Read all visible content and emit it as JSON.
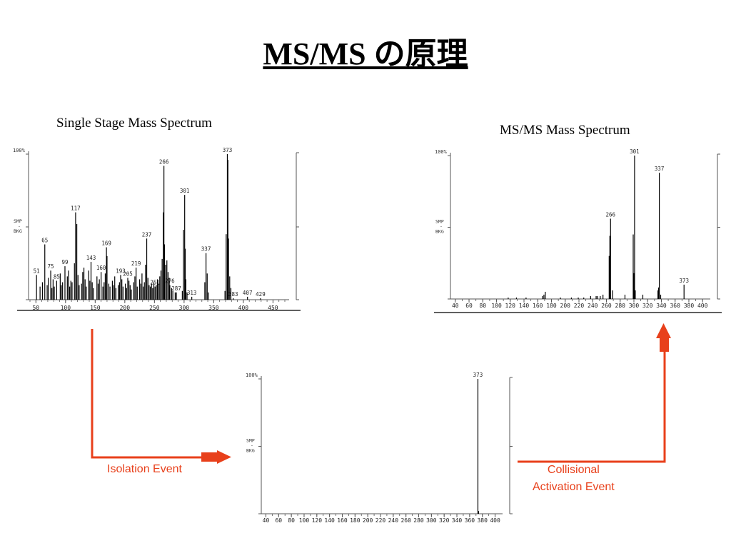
{
  "title": "MS/MS の原理",
  "captions": {
    "single": "Single Stage Mass Spectrum",
    "msms": "MS/MS Mass Spectrum"
  },
  "events": {
    "isolation": "Isolation Event",
    "collisional_line1": "Collisional",
    "collisional_line2": "Activation Event"
  },
  "colors": {
    "arrow": "#e8401b",
    "trace": "#000000",
    "axis": "#555555"
  },
  "chart_data": [
    {
      "id": "single",
      "type": "bar",
      "xlabel": "",
      "ylabel": "",
      "xlim": [
        40,
        470
      ],
      "ylim": [
        0,
        100
      ],
      "xticks": [
        50,
        100,
        150,
        200,
        250,
        300,
        350,
        400,
        450
      ],
      "minor_step": 10,
      "ytop_label": "100%",
      "side_label": [
        "SMP",
        "-",
        "BKG"
      ],
      "peaks": [
        {
          "x": 373,
          "y": 100,
          "label": "373"
        },
        {
          "x": 374,
          "y": 96
        },
        {
          "x": 375,
          "y": 42
        },
        {
          "x": 371,
          "y": 45
        },
        {
          "x": 266,
          "y": 92,
          "label": "266"
        },
        {
          "x": 265,
          "y": 60
        },
        {
          "x": 267,
          "y": 38
        },
        {
          "x": 301,
          "y": 72,
          "label": "301"
        },
        {
          "x": 299,
          "y": 48
        },
        {
          "x": 302,
          "y": 35
        },
        {
          "x": 117,
          "y": 60,
          "label": "117"
        },
        {
          "x": 119,
          "y": 52
        },
        {
          "x": 237,
          "y": 42,
          "label": "237"
        },
        {
          "x": 169,
          "y": 36,
          "label": "169"
        },
        {
          "x": 170,
          "y": 30
        },
        {
          "x": 65,
          "y": 38,
          "label": "65"
        },
        {
          "x": 337,
          "y": 32,
          "label": "337"
        },
        {
          "x": 339,
          "y": 18
        },
        {
          "x": 143,
          "y": 26,
          "label": "143"
        },
        {
          "x": 160,
          "y": 19,
          "label": "160"
        },
        {
          "x": 99,
          "y": 23,
          "label": "99"
        },
        {
          "x": 75,
          "y": 20,
          "label": "75"
        },
        {
          "x": 219,
          "y": 22,
          "label": "219"
        },
        {
          "x": 193,
          "y": 17,
          "label": "193"
        },
        {
          "x": 205,
          "y": 15,
          "label": "205"
        },
        {
          "x": 51,
          "y": 17,
          "label": "51"
        },
        {
          "x": 85,
          "y": 13,
          "label": "85"
        },
        {
          "x": 251,
          "y": 9,
          "label": "251"
        },
        {
          "x": 276,
          "y": 10,
          "label": "276"
        },
        {
          "x": 287,
          "y": 5,
          "label": "287"
        },
        {
          "x": 313,
          "y": 2,
          "label": "313"
        },
        {
          "x": 383,
          "y": 1,
          "label": "383"
        },
        {
          "x": 407,
          "y": 2,
          "label": "407"
        },
        {
          "x": 429,
          "y": 1,
          "label": "429"
        },
        {
          "x": 57,
          "y": 9
        },
        {
          "x": 61,
          "y": 12
        },
        {
          "x": 69,
          "y": 10
        },
        {
          "x": 71,
          "y": 15
        },
        {
          "x": 77,
          "y": 8
        },
        {
          "x": 79,
          "y": 14
        },
        {
          "x": 81,
          "y": 9
        },
        {
          "x": 91,
          "y": 18
        },
        {
          "x": 93,
          "y": 10
        },
        {
          "x": 95,
          "y": 12
        },
        {
          "x": 103,
          "y": 16
        },
        {
          "x": 105,
          "y": 20
        },
        {
          "x": 107,
          "y": 9
        },
        {
          "x": 109,
          "y": 13
        },
        {
          "x": 111,
          "y": 12
        },
        {
          "x": 115,
          "y": 25
        },
        {
          "x": 121,
          "y": 17
        },
        {
          "x": 123,
          "y": 10
        },
        {
          "x": 127,
          "y": 11
        },
        {
          "x": 129,
          "y": 19
        },
        {
          "x": 131,
          "y": 22
        },
        {
          "x": 133,
          "y": 14
        },
        {
          "x": 135,
          "y": 9
        },
        {
          "x": 139,
          "y": 20
        },
        {
          "x": 141,
          "y": 13
        },
        {
          "x": 145,
          "y": 12
        },
        {
          "x": 147,
          "y": 8
        },
        {
          "x": 153,
          "y": 16
        },
        {
          "x": 155,
          "y": 11
        },
        {
          "x": 157,
          "y": 14
        },
        {
          "x": 163,
          "y": 9
        },
        {
          "x": 165,
          "y": 12
        },
        {
          "x": 167,
          "y": 18
        },
        {
          "x": 173,
          "y": 11
        },
        {
          "x": 175,
          "y": 9
        },
        {
          "x": 179,
          "y": 13
        },
        {
          "x": 181,
          "y": 10
        },
        {
          "x": 183,
          "y": 16
        },
        {
          "x": 185,
          "y": 8
        },
        {
          "x": 189,
          "y": 10
        },
        {
          "x": 191,
          "y": 12
        },
        {
          "x": 195,
          "y": 14
        },
        {
          "x": 197,
          "y": 9
        },
        {
          "x": 201,
          "y": 11
        },
        {
          "x": 203,
          "y": 8
        },
        {
          "x": 207,
          "y": 13
        },
        {
          "x": 209,
          "y": 10
        },
        {
          "x": 211,
          "y": 7
        },
        {
          "x": 215,
          "y": 12
        },
        {
          "x": 217,
          "y": 16
        },
        {
          "x": 221,
          "y": 9
        },
        {
          "x": 225,
          "y": 14
        },
        {
          "x": 227,
          "y": 11
        },
        {
          "x": 229,
          "y": 18
        },
        {
          "x": 231,
          "y": 9
        },
        {
          "x": 233,
          "y": 12
        },
        {
          "x": 235,
          "y": 24
        },
        {
          "x": 239,
          "y": 15
        },
        {
          "x": 241,
          "y": 10
        },
        {
          "x": 243,
          "y": 9
        },
        {
          "x": 245,
          "y": 11
        },
        {
          "x": 247,
          "y": 8
        },
        {
          "x": 249,
          "y": 12
        },
        {
          "x": 253,
          "y": 10
        },
        {
          "x": 255,
          "y": 14
        },
        {
          "x": 257,
          "y": 11
        },
        {
          "x": 259,
          "y": 16
        },
        {
          "x": 261,
          "y": 20
        },
        {
          "x": 263,
          "y": 28
        },
        {
          "x": 269,
          "y": 24
        },
        {
          "x": 271,
          "y": 27
        },
        {
          "x": 273,
          "y": 19
        },
        {
          "x": 275,
          "y": 15
        },
        {
          "x": 279,
          "y": 8
        },
        {
          "x": 281,
          "y": 6
        },
        {
          "x": 285,
          "y": 5
        },
        {
          "x": 297,
          "y": 6
        },
        {
          "x": 303,
          "y": 14
        },
        {
          "x": 305,
          "y": 5
        },
        {
          "x": 335,
          "y": 12
        },
        {
          "x": 341,
          "y": 5
        },
        {
          "x": 369,
          "y": 6
        },
        {
          "x": 377,
          "y": 16
        },
        {
          "x": 379,
          "y": 8
        }
      ]
    },
    {
      "id": "isolation",
      "type": "bar",
      "xlabel": "",
      "ylabel": "",
      "xlim": [
        35,
        405
      ],
      "ylim": [
        0,
        100
      ],
      "xticks": [
        40,
        60,
        80,
        100,
        120,
        140,
        160,
        180,
        200,
        220,
        240,
        260,
        280,
        300,
        320,
        340,
        360,
        380,
        400
      ],
      "minor_step": 10,
      "ytop_label": "100%",
      "side_label": [
        "SMP",
        "-",
        "BKG"
      ],
      "peaks": [
        {
          "x": 373,
          "y": 100,
          "label": "373"
        },
        {
          "x": 374,
          "y": 2
        }
      ]
    },
    {
      "id": "msms",
      "type": "bar",
      "xlabel": "",
      "ylabel": "",
      "xlim": [
        35,
        405
      ],
      "ylim": [
        0,
        100
      ],
      "xticks": [
        40,
        60,
        80,
        100,
        120,
        140,
        160,
        180,
        200,
        220,
        240,
        260,
        280,
        300,
        320,
        340,
        360,
        380,
        400
      ],
      "minor_step": 10,
      "ytop_label": "100%",
      "side_label": [
        "SMP",
        "-",
        "BKG"
      ],
      "peaks": [
        {
          "x": 301,
          "y": 100,
          "label": "301"
        },
        {
          "x": 337,
          "y": 88,
          "label": "337"
        },
        {
          "x": 266,
          "y": 56,
          "label": "266"
        },
        {
          "x": 373,
          "y": 10,
          "label": "373"
        },
        {
          "x": 299,
          "y": 45
        },
        {
          "x": 265,
          "y": 44
        },
        {
          "x": 264,
          "y": 30
        },
        {
          "x": 300,
          "y": 18
        },
        {
          "x": 336,
          "y": 8
        },
        {
          "x": 335,
          "y": 6
        },
        {
          "x": 302,
          "y": 6
        },
        {
          "x": 171,
          "y": 5
        },
        {
          "x": 169,
          "y": 3
        },
        {
          "x": 167,
          "y": 2
        },
        {
          "x": 287,
          "y": 3
        },
        {
          "x": 313,
          "y": 3
        },
        {
          "x": 255,
          "y": 3
        },
        {
          "x": 251,
          "y": 2
        },
        {
          "x": 237,
          "y": 2
        },
        {
          "x": 245,
          "y": 2
        },
        {
          "x": 247,
          "y": 2
        },
        {
          "x": 219,
          "y": 1
        },
        {
          "x": 209,
          "y": 1
        },
        {
          "x": 117,
          "y": 1
        },
        {
          "x": 129,
          "y": 1
        },
        {
          "x": 143,
          "y": 1
        },
        {
          "x": 193,
          "y": 1
        },
        {
          "x": 227,
          "y": 1
        },
        {
          "x": 269,
          "y": 6
        },
        {
          "x": 339,
          "y": 3
        }
      ]
    }
  ]
}
